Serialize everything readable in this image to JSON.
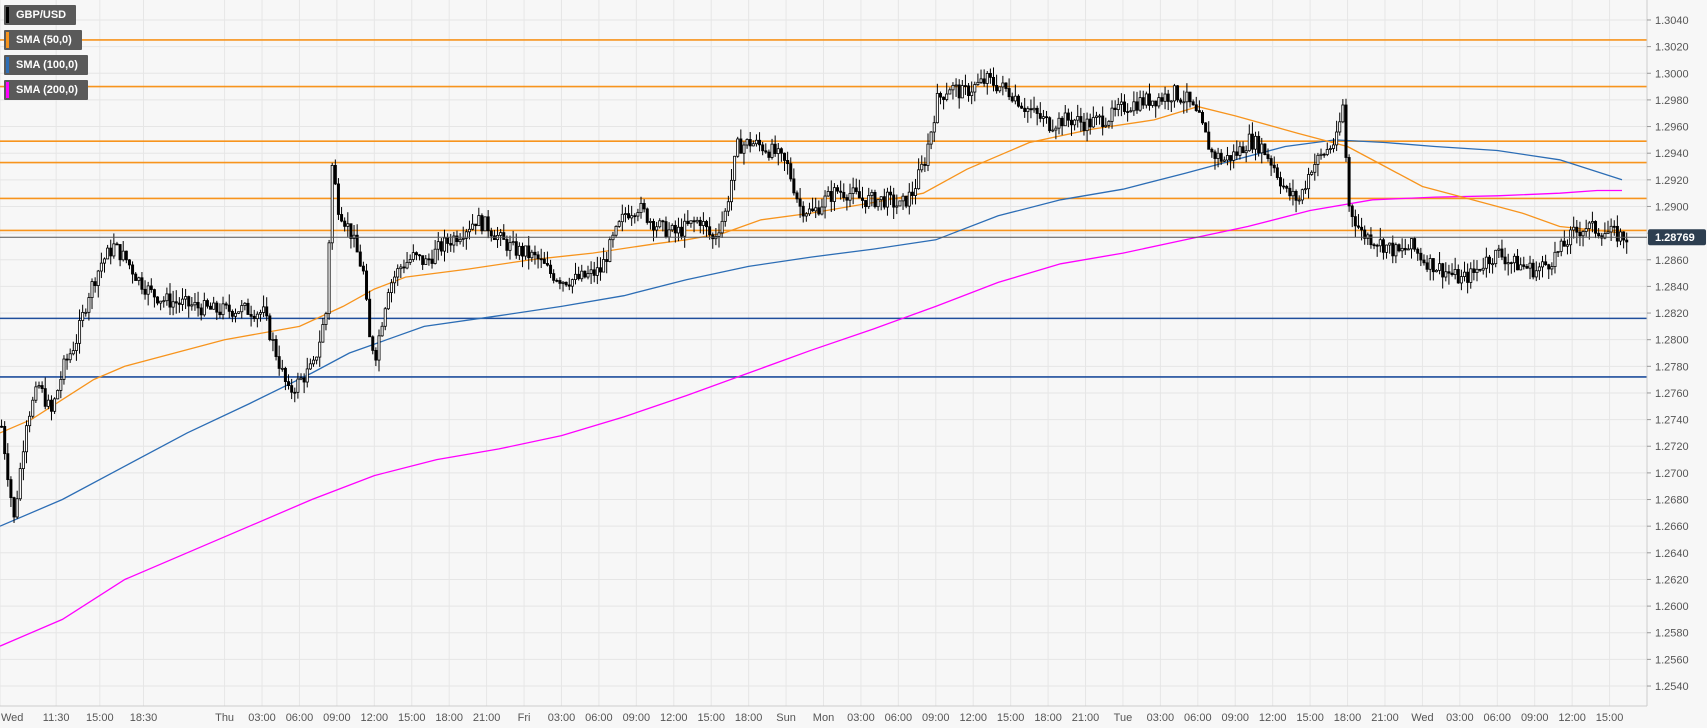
{
  "chart_data": {
    "type": "candlestick",
    "title": "",
    "symbol": "GBP/USD",
    "xlabel": "",
    "ylabel": "",
    "ylim": [
      1.2525,
      1.3055
    ],
    "grid": true,
    "legend": "top-left",
    "y_ticks": [
      "1.3040",
      "1.3020",
      "1.3000",
      "1.2980",
      "1.2960",
      "1.2940",
      "1.2920",
      "1.2900",
      "1.2880",
      "1.2860",
      "1.2840",
      "1.2820",
      "1.2800",
      "1.2780",
      "1.2760",
      "1.2740",
      "1.2720",
      "1.2700",
      "1.2680",
      "1.2660",
      "1.2640",
      "1.2620",
      "1.2600",
      "1.2580",
      "1.2560",
      "1.2540"
    ],
    "x_ticks": [
      {
        "label": "Wed",
        "t": 0
      },
      {
        "label": "11:30",
        "t": 18
      },
      {
        "label": "15:00",
        "t": 32
      },
      {
        "label": "18:30",
        "t": 46
      },
      {
        "label": "Thu",
        "t": 72
      },
      {
        "label": "03:00",
        "t": 84
      },
      {
        "label": "06:00",
        "t": 96
      },
      {
        "label": "09:00",
        "t": 108
      },
      {
        "label": "12:00",
        "t": 120
      },
      {
        "label": "15:00",
        "t": 132
      },
      {
        "label": "18:00",
        "t": 144
      },
      {
        "label": "21:00",
        "t": 156
      },
      {
        "label": "Fri",
        "t": 168
      },
      {
        "label": "03:00",
        "t": 180
      },
      {
        "label": "06:00",
        "t": 192
      },
      {
        "label": "09:00",
        "t": 204
      },
      {
        "label": "12:00",
        "t": 216
      },
      {
        "label": "15:00",
        "t": 228
      },
      {
        "label": "18:00",
        "t": 240
      },
      {
        "label": "Sun",
        "t": 252
      },
      {
        "label": "Mon",
        "t": 264
      },
      {
        "label": "03:00",
        "t": 276
      },
      {
        "label": "06:00",
        "t": 288
      },
      {
        "label": "09:00",
        "t": 300
      },
      {
        "label": "12:00",
        "t": 312
      },
      {
        "label": "15:00",
        "t": 324
      },
      {
        "label": "18:00",
        "t": 336
      },
      {
        "label": "21:00",
        "t": 348
      },
      {
        "label": "Tue",
        "t": 360
      },
      {
        "label": "03:00",
        "t": 372
      },
      {
        "label": "06:00",
        "t": 384
      },
      {
        "label": "09:00",
        "t": 396
      },
      {
        "label": "12:00",
        "t": 408
      },
      {
        "label": "15:00",
        "t": 420
      },
      {
        "label": "18:00",
        "t": 432
      },
      {
        "label": "21:00",
        "t": 444
      },
      {
        "label": "Wed",
        "t": 456
      },
      {
        "label": "03:00",
        "t": 468
      },
      {
        "label": "06:00",
        "t": 480
      },
      {
        "label": "09:00",
        "t": 492
      },
      {
        "label": "12:00",
        "t": 504
      },
      {
        "label": "15:00",
        "t": 516
      }
    ],
    "last_price": "1.28769",
    "last_price_value": 1.28769,
    "legend_items": [
      {
        "name": "GBP/USD",
        "color": "#000000"
      },
      {
        "name": "SMA (50,0)",
        "color": "#f7941d"
      },
      {
        "name": "SMA (100,0)",
        "color": "#2c6db5"
      },
      {
        "name": "SMA (200,0)",
        "color": "#ff00ff"
      }
    ],
    "horizontal_levels": [
      {
        "value": 1.3025,
        "color": "#f7941d"
      },
      {
        "value": 1.299,
        "color": "#f7941d"
      },
      {
        "value": 1.2949,
        "color": "#f7941d"
      },
      {
        "value": 1.2933,
        "color": "#f7941d"
      },
      {
        "value": 1.2906,
        "color": "#f7941d"
      },
      {
        "value": 1.2882,
        "color": "#f7941d"
      },
      {
        "value": 1.2816,
        "color": "#1f4e9c"
      },
      {
        "value": 1.2772,
        "color": "#1f4e9c"
      }
    ],
    "close_path": [
      [
        0,
        1.2735
      ],
      [
        4,
        1.2665
      ],
      [
        8,
        1.274
      ],
      [
        12,
        1.2765
      ],
      [
        16,
        1.2745
      ],
      [
        20,
        1.278
      ],
      [
        24,
        1.28
      ],
      [
        28,
        1.2835
      ],
      [
        32,
        1.2858
      ],
      [
        36,
        1.287
      ],
      [
        40,
        1.286
      ],
      [
        44,
        1.2845
      ],
      [
        48,
        1.2835
      ],
      [
        52,
        1.283
      ],
      [
        56,
        1.2828
      ],
      [
        60,
        1.2826
      ],
      [
        64,
        1.2824
      ],
      [
        68,
        1.2822
      ],
      [
        72,
        1.2822
      ],
      [
        76,
        1.2823
      ],
      [
        80,
        1.2822
      ],
      [
        84,
        1.282
      ],
      [
        88,
        1.279
      ],
      [
        92,
        1.276
      ],
      [
        96,
        1.277
      ],
      [
        100,
        1.278
      ],
      [
        104,
        1.282
      ],
      [
        106,
        1.293
      ],
      [
        108,
        1.29
      ],
      [
        112,
        1.288
      ],
      [
        116,
        1.285
      ],
      [
        118,
        1.28
      ],
      [
        120,
        1.279
      ],
      [
        124,
        1.284
      ],
      [
        128,
        1.2855
      ],
      [
        132,
        1.2862
      ],
      [
        136,
        1.2858
      ],
      [
        140,
        1.2868
      ],
      [
        144,
        1.2875
      ],
      [
        148,
        1.2882
      ],
      [
        152,
        1.289
      ],
      [
        156,
        1.2885
      ],
      [
        160,
        1.2875
      ],
      [
        164,
        1.2868
      ],
      [
        168,
        1.2865
      ],
      [
        172,
        1.286
      ],
      [
        176,
        1.285
      ],
      [
        180,
        1.2845
      ],
      [
        184,
        1.2845
      ],
      [
        188,
        1.2848
      ],
      [
        192,
        1.2852
      ],
      [
        196,
        1.2875
      ],
      [
        200,
        1.2895
      ],
      [
        204,
        1.29
      ],
      [
        208,
        1.289
      ],
      [
        212,
        1.2883
      ],
      [
        216,
        1.288
      ],
      [
        220,
        1.2885
      ],
      [
        224,
        1.289
      ],
      [
        228,
        1.2875
      ],
      [
        232,
        1.2895
      ],
      [
        236,
        1.2945
      ],
      [
        240,
        1.2948
      ],
      [
        244,
        1.2945
      ],
      [
        248,
        1.294
      ],
      [
        252,
        1.293
      ],
      [
        256,
        1.29
      ],
      [
        260,
        1.2895
      ],
      [
        264,
        1.2905
      ],
      [
        268,
        1.2912
      ],
      [
        272,
        1.291
      ],
      [
        276,
        1.2905
      ],
      [
        280,
        1.2905
      ],
      [
        284,
        1.2905
      ],
      [
        288,
        1.29
      ],
      [
        292,
        1.291
      ],
      [
        296,
        1.2935
      ],
      [
        300,
        1.298
      ],
      [
        304,
        1.299
      ],
      [
        308,
        1.2985
      ],
      [
        312,
        1.299
      ],
      [
        316,
        1.2995
      ],
      [
        320,
        1.299
      ],
      [
        324,
        1.2985
      ],
      [
        328,
        1.2975
      ],
      [
        332,
        1.2968
      ],
      [
        336,
        1.2962
      ],
      [
        340,
        1.2965
      ],
      [
        344,
        1.2965
      ],
      [
        348,
        1.2962
      ],
      [
        352,
        1.2965
      ],
      [
        356,
        1.2968
      ],
      [
        360,
        1.2975
      ],
      [
        364,
        1.2978
      ],
      [
        368,
        1.298
      ],
      [
        372,
        1.2982
      ],
      [
        376,
        1.2985
      ],
      [
        380,
        1.298
      ],
      [
        384,
        1.2965
      ],
      [
        388,
        1.294
      ],
      [
        392,
        1.2935
      ],
      [
        396,
        1.294
      ],
      [
        400,
        1.295
      ],
      [
        404,
        1.2945
      ],
      [
        408,
        1.293
      ],
      [
        412,
        1.291
      ],
      [
        416,
        1.2905
      ],
      [
        420,
        1.293
      ],
      [
        424,
        1.294
      ],
      [
        428,
        1.295
      ],
      [
        430,
        1.2975
      ],
      [
        432,
        1.29
      ],
      [
        436,
        1.288
      ],
      [
        440,
        1.2875
      ],
      [
        444,
        1.287
      ],
      [
        448,
        1.2865
      ],
      [
        452,
        1.287
      ],
      [
        456,
        1.286
      ],
      [
        460,
        1.2855
      ],
      [
        464,
        1.285
      ],
      [
        468,
        1.2845
      ],
      [
        472,
        1.285
      ],
      [
        476,
        1.286
      ],
      [
        480,
        1.2865
      ],
      [
        484,
        1.2858
      ],
      [
        488,
        1.2855
      ],
      [
        492,
        1.2852
      ],
      [
        496,
        1.2858
      ],
      [
        500,
        1.2868
      ],
      [
        504,
        1.288
      ],
      [
        508,
        1.2885
      ],
      [
        512,
        1.2882
      ],
      [
        516,
        1.288
      ],
      [
        520,
        1.2877
      ]
    ],
    "sma_50": [
      [
        0,
        1.273
      ],
      [
        10,
        1.274
      ],
      [
        20,
        1.2755
      ],
      [
        30,
        1.277
      ],
      [
        40,
        1.278
      ],
      [
        56,
        1.279
      ],
      [
        72,
        1.28
      ],
      [
        96,
        1.281
      ],
      [
        110,
        1.2825
      ],
      [
        120,
        1.2838
      ],
      [
        130,
        1.2847
      ],
      [
        150,
        1.2853
      ],
      [
        170,
        1.286
      ],
      [
        190,
        1.2865
      ],
      [
        210,
        1.2872
      ],
      [
        220,
        1.2875
      ],
      [
        232,
        1.288
      ],
      [
        244,
        1.289
      ],
      [
        260,
        1.2895
      ],
      [
        280,
        1.2903
      ],
      [
        296,
        1.291
      ],
      [
        310,
        1.2928
      ],
      [
        330,
        1.2948
      ],
      [
        350,
        1.2958
      ],
      [
        370,
        1.2965
      ],
      [
        384,
        1.2975
      ],
      [
        396,
        1.2968
      ],
      [
        416,
        1.2955
      ],
      [
        432,
        1.2945
      ],
      [
        444,
        1.293
      ],
      [
        456,
        1.2915
      ],
      [
        472,
        1.2905
      ],
      [
        488,
        1.2895
      ],
      [
        500,
        1.2885
      ],
      [
        512,
        1.2882
      ],
      [
        520,
        1.288
      ]
    ],
    "sma_100": [
      [
        0,
        1.266
      ],
      [
        20,
        1.268
      ],
      [
        40,
        1.2705
      ],
      [
        60,
        1.273
      ],
      [
        80,
        1.2752
      ],
      [
        100,
        1.2775
      ],
      [
        112,
        1.279
      ],
      [
        124,
        1.28
      ],
      [
        136,
        1.281
      ],
      [
        160,
        1.2818
      ],
      [
        180,
        1.2825
      ],
      [
        200,
        1.2833
      ],
      [
        220,
        1.2845
      ],
      [
        240,
        1.2855
      ],
      [
        260,
        1.2862
      ],
      [
        280,
        1.2868
      ],
      [
        300,
        1.2875
      ],
      [
        320,
        1.2893
      ],
      [
        340,
        1.2905
      ],
      [
        360,
        1.2913
      ],
      [
        380,
        1.2925
      ],
      [
        396,
        1.2935
      ],
      [
        412,
        1.2945
      ],
      [
        428,
        1.295
      ],
      [
        444,
        1.2948
      ],
      [
        460,
        1.2945
      ],
      [
        480,
        1.2942
      ],
      [
        500,
        1.2935
      ],
      [
        520,
        1.292
      ]
    ],
    "sma_200": [
      [
        0,
        1.257
      ],
      [
        20,
        1.259
      ],
      [
        40,
        1.262
      ],
      [
        60,
        1.264
      ],
      [
        80,
        1.266
      ],
      [
        100,
        1.268
      ],
      [
        120,
        1.2698
      ],
      [
        140,
        1.271
      ],
      [
        160,
        1.2718
      ],
      [
        180,
        1.2728
      ],
      [
        200,
        1.2742
      ],
      [
        220,
        1.2758
      ],
      [
        240,
        1.2775
      ],
      [
        260,
        1.2792
      ],
      [
        280,
        1.2808
      ],
      [
        300,
        1.2825
      ],
      [
        320,
        1.2843
      ],
      [
        340,
        1.2857
      ],
      [
        360,
        1.2865
      ],
      [
        380,
        1.2875
      ],
      [
        400,
        1.2885
      ],
      [
        420,
        1.2897
      ],
      [
        440,
        1.2905
      ],
      [
        460,
        1.2907
      ],
      [
        480,
        1.2908
      ],
      [
        500,
        1.291
      ],
      [
        512,
        1.2912
      ],
      [
        520,
        1.2912
      ]
    ]
  }
}
